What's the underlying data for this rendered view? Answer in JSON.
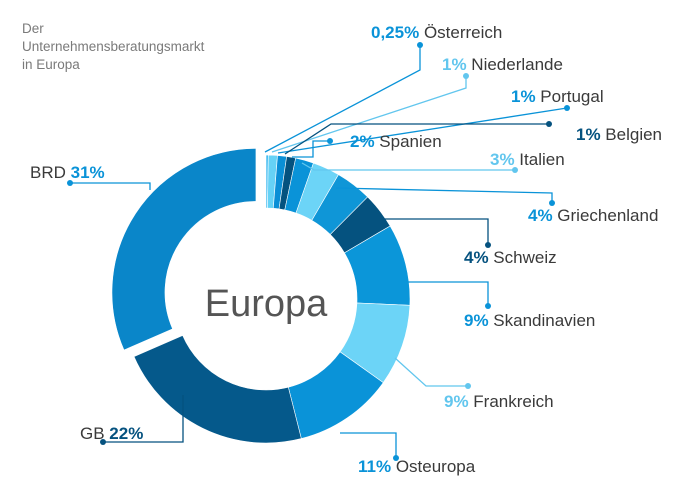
{
  "title": {
    "lines": [
      "Der",
      "Unternehmensberatungsmarkt",
      "in Europa"
    ]
  },
  "chart_data": {
    "type": "pie",
    "center_label": "Europa",
    "slices": [
      {
        "name": "Österreich",
        "value_label": "0,25%",
        "value": 0.25,
        "color": "#3fbaf0",
        "pct_color": "#0a93d8"
      },
      {
        "name": "Niederlande",
        "value_label": "1%",
        "value": 1,
        "color": "#65d2f6",
        "pct_color": "#62c6ee"
      },
      {
        "name": "Portugal",
        "value_label": "1%",
        "value": 1,
        "color": "#0a8fd6",
        "pct_color": "#0a93d8"
      },
      {
        "name": "Belgien",
        "value_label": "1%",
        "value": 1,
        "color": "#04527f",
        "pct_color": "#05527f"
      },
      {
        "name": "Spanien",
        "value_label": "2%",
        "value": 2,
        "color": "#0a93d8",
        "pct_color": "#0a93d8"
      },
      {
        "name": "Italien",
        "value_label": "3%",
        "value": 3,
        "color": "#6cd4f7",
        "pct_color": "#62c6ee"
      },
      {
        "name": "Griechenland",
        "value_label": "4%",
        "value": 4,
        "color": "#0f96d7",
        "pct_color": "#0a93d8"
      },
      {
        "name": "Schweiz",
        "value_label": "4%",
        "value": 4,
        "color": "#05527f",
        "pct_color": "#05527f"
      },
      {
        "name": "Skandinavien",
        "value_label": "9%",
        "value": 9,
        "color": "#0b96d9",
        "pct_color": "#0a93d8"
      },
      {
        "name": "Frankreich",
        "value_label": "9%",
        "value": 9,
        "color": "#6cd4f7",
        "pct_color": "#62c6ee"
      },
      {
        "name": "Osteuropa",
        "value_label": "11%",
        "value": 11,
        "color": "#0a93d8",
        "pct_color": "#0a93d8"
      },
      {
        "name": "GB",
        "value_label": "22%",
        "value": 22,
        "color": "#05598b",
        "pct_color": "#05527f"
      },
      {
        "name": "BRD",
        "value_label": "31%",
        "value": 31,
        "color": "#0a86c9",
        "pct_color": "#0a93d8",
        "exploded": true
      }
    ]
  }
}
